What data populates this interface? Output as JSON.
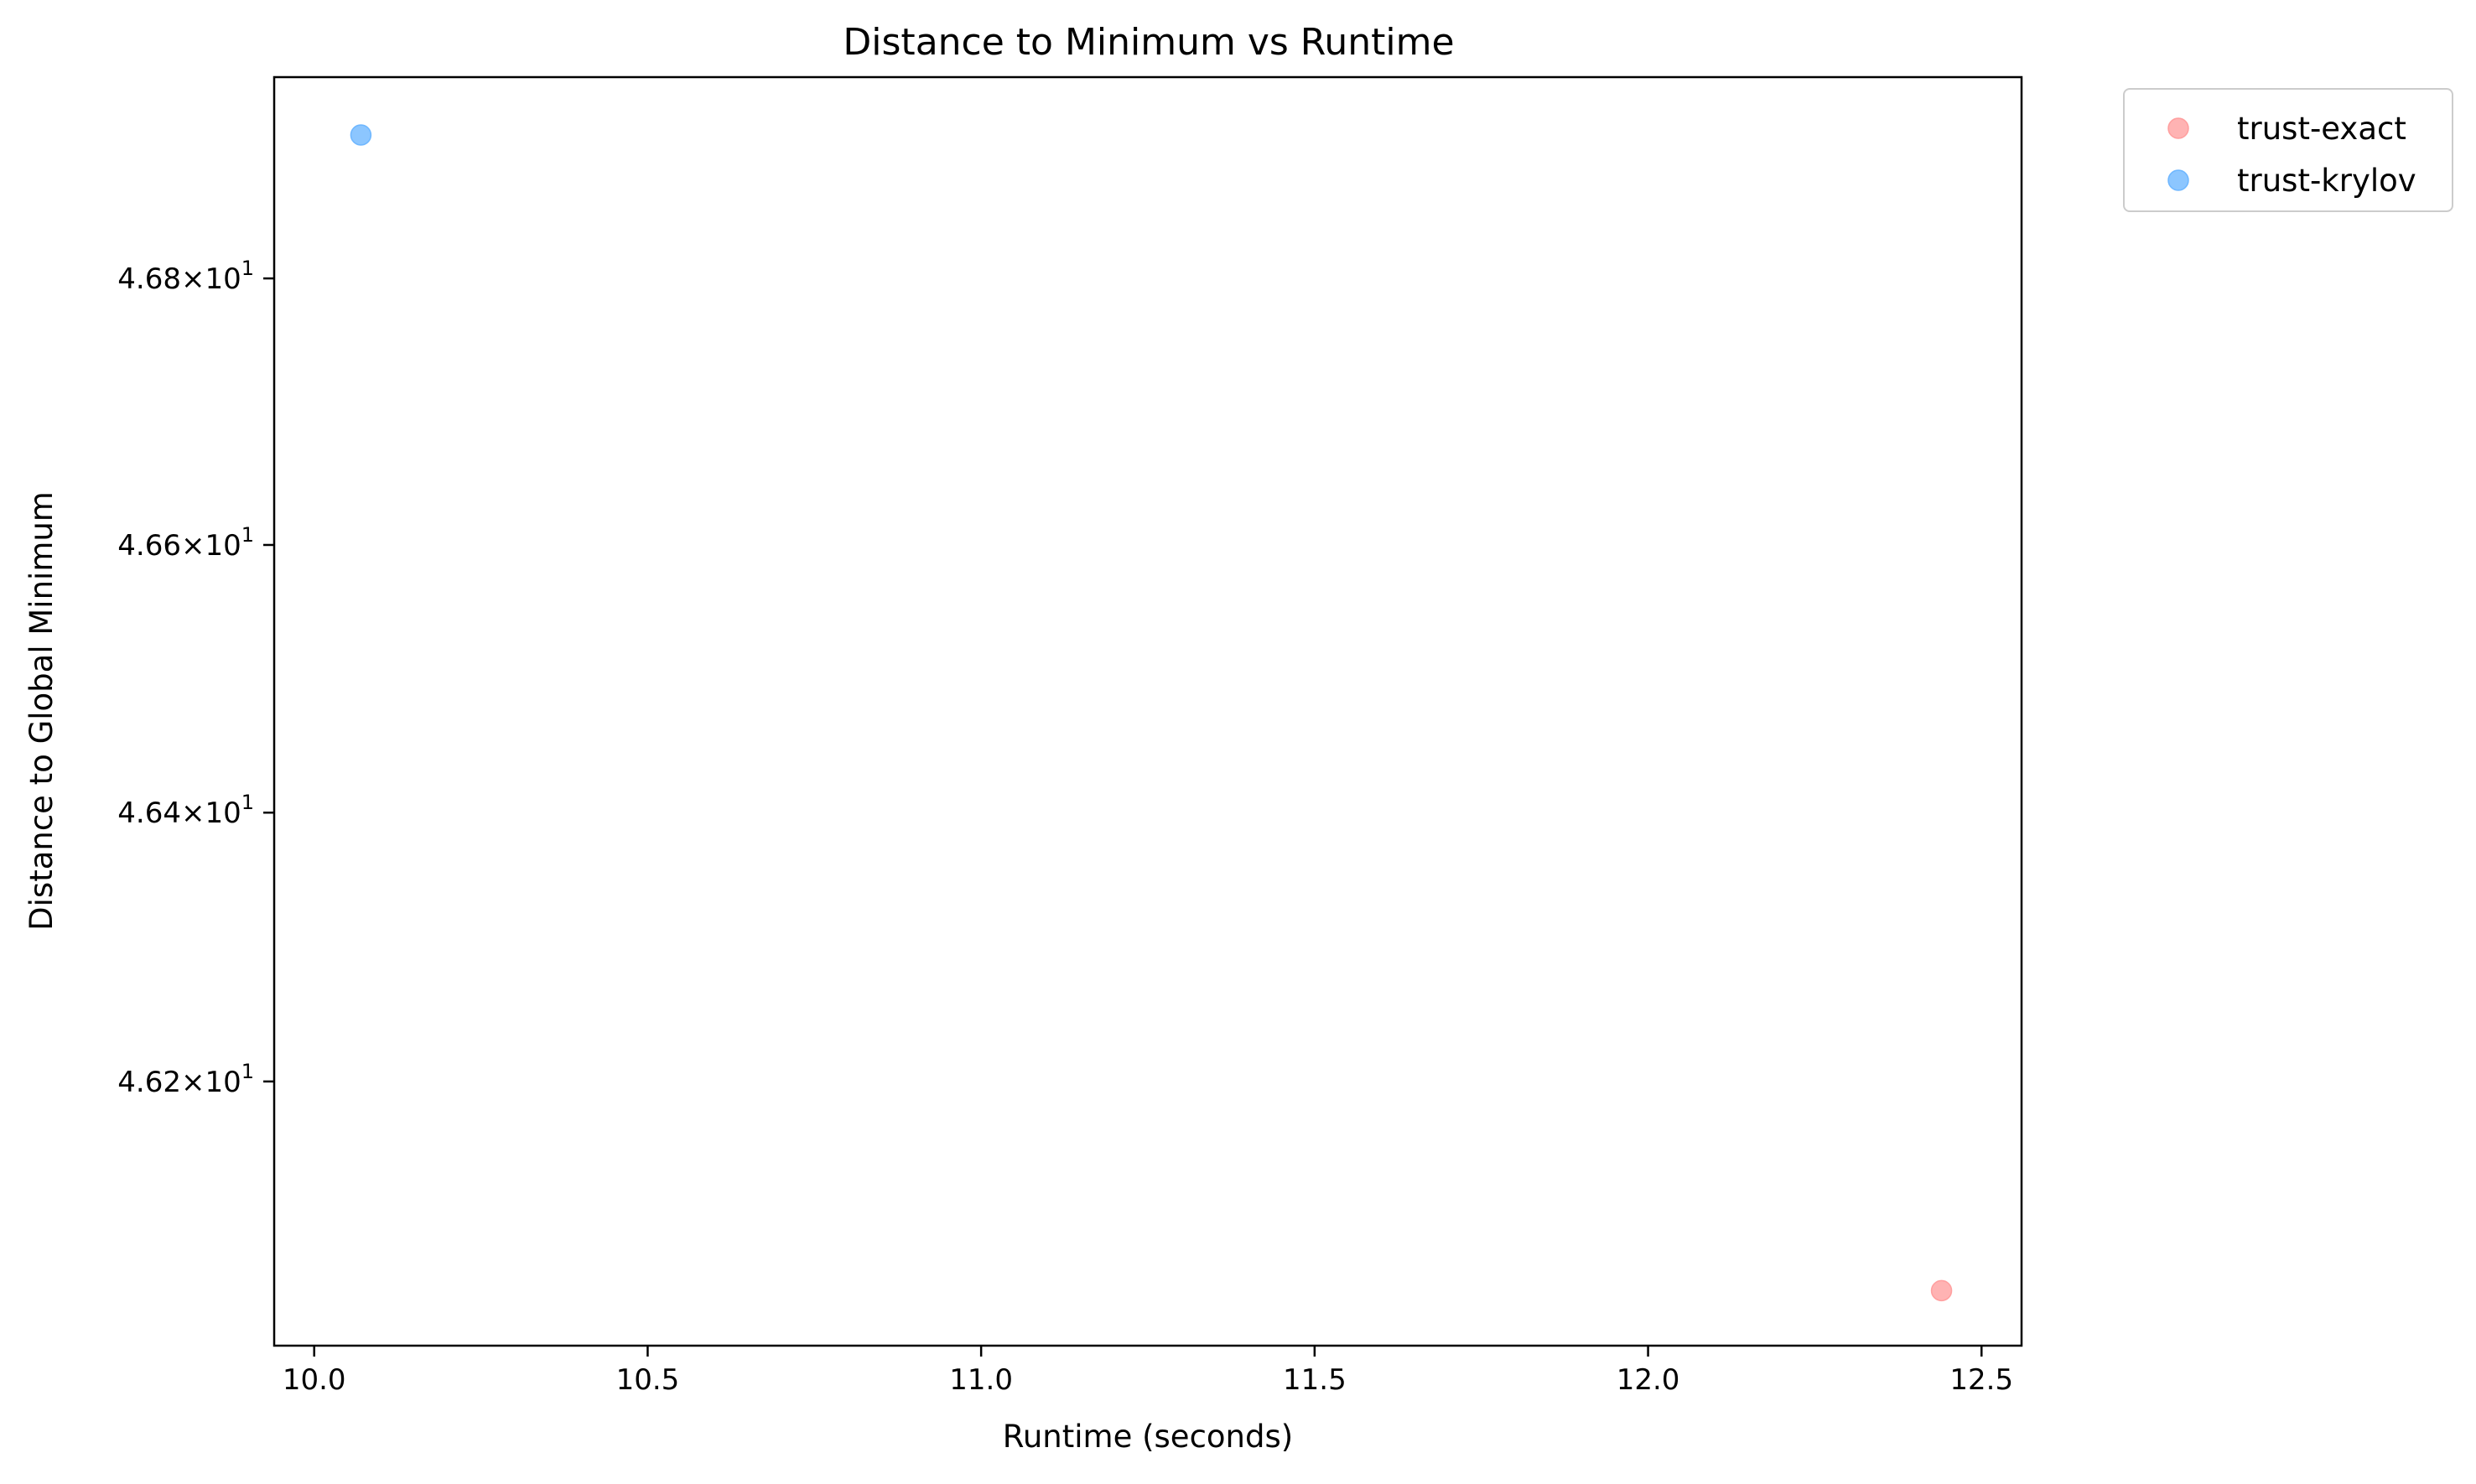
{
  "chart_data": {
    "type": "scatter",
    "title": "Distance to Minimum vs Runtime",
    "xlabel": "Runtime (seconds)",
    "ylabel": "Distance to Global Minimum",
    "xlim": [
      9.94,
      12.56
    ],
    "ylim": [
      46.0043,
      46.9516
    ],
    "yscale": "log",
    "grid": false,
    "legend_placement": "outside-top-right",
    "x_ticks": [
      {
        "value": 10.0,
        "label": "10.0"
      },
      {
        "value": 10.5,
        "label": "10.5"
      },
      {
        "value": 11.0,
        "label": "11.0"
      },
      {
        "value": 11.5,
        "label": "11.5"
      },
      {
        "value": 12.0,
        "label": "12.0"
      },
      {
        "value": 12.5,
        "label": "12.5"
      }
    ],
    "y_ticks": [
      {
        "value": 46.2,
        "mantissa": "4.62",
        "base": "10",
        "exponent": "1"
      },
      {
        "value": 46.4,
        "mantissa": "4.64",
        "base": "10",
        "exponent": "1"
      },
      {
        "value": 46.6,
        "mantissa": "4.66",
        "base": "10",
        "exponent": "1"
      },
      {
        "value": 46.8,
        "mantissa": "4.68",
        "base": "10",
        "exponent": "1"
      }
    ],
    "series": [
      {
        "name": "trust-exact",
        "color": "#ff9999",
        "points": [
          {
            "x": 12.44,
            "y": 46.045
          }
        ]
      },
      {
        "name": "trust-krylov",
        "color": "#66b3ff",
        "points": [
          {
            "x": 10.07,
            "y": 46.908
          }
        ]
      }
    ]
  }
}
